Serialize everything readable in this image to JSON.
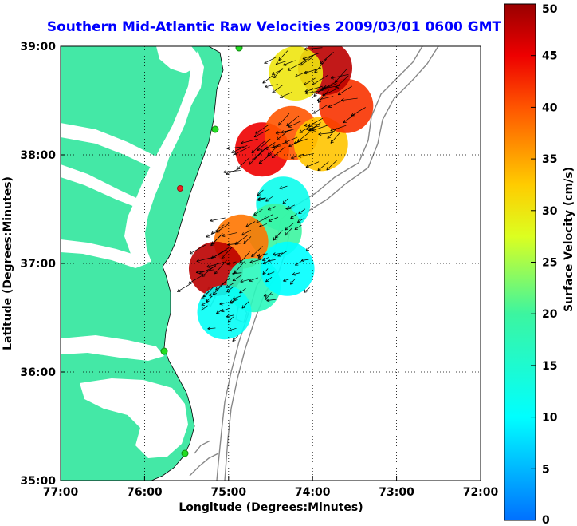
{
  "chart_data": {
    "type": "heatmap",
    "title": "Southern Mid-Atlantic Raw Velocities 2009/03/01 0600 GMT",
    "xlabel": "Longitude (Degrees:Minutes)",
    "ylabel": "Latitude (Degrees:Minutes)",
    "xlim": [
      -77,
      -72
    ],
    "ylim": [
      35,
      39
    ],
    "x_ticks": [
      {
        "value": -77,
        "label": "77:00"
      },
      {
        "value": -76,
        "label": "76:00"
      },
      {
        "value": -75,
        "label": "75:00"
      },
      {
        "value": -74,
        "label": "74:00"
      },
      {
        "value": -73,
        "label": "73:00"
      },
      {
        "value": -72,
        "label": "72:00"
      }
    ],
    "y_ticks": [
      {
        "value": 35,
        "label": "35:00"
      },
      {
        "value": 36,
        "label": "36:00"
      },
      {
        "value": 37,
        "label": "37:00"
      },
      {
        "value": 38,
        "label": "38:00"
      },
      {
        "value": 39,
        "label": "39:00"
      }
    ],
    "grid": true,
    "colorbar": {
      "label": "Surface Velocity (cm/s)",
      "min": 0,
      "max": 50,
      "ticks": [
        "0",
        "5",
        "10",
        "15",
        "20",
        "25",
        "30",
        "35",
        "40",
        "45",
        "50"
      ]
    },
    "velocity_patches": [
      {
        "lon": -74.6,
        "lat": 38.05,
        "speed": 45
      },
      {
        "lon": -74.25,
        "lat": 38.2,
        "speed": 40
      },
      {
        "lon": -73.9,
        "lat": 38.1,
        "speed": 33
      },
      {
        "lon": -73.6,
        "lat": 38.45,
        "speed": 42
      },
      {
        "lon": -73.85,
        "lat": 38.8,
        "speed": 48
      },
      {
        "lon": -74.2,
        "lat": 38.75,
        "speed": 30
      },
      {
        "lon": -74.35,
        "lat": 37.55,
        "speed": 12
      },
      {
        "lon": -74.45,
        "lat": 37.3,
        "speed": 20
      },
      {
        "lon": -74.85,
        "lat": 37.2,
        "speed": 38
      },
      {
        "lon": -75.15,
        "lat": 36.95,
        "speed": 48
      },
      {
        "lon": -74.7,
        "lat": 36.8,
        "speed": 17
      },
      {
        "lon": -74.3,
        "lat": 36.95,
        "speed": 10
      },
      {
        "lon": -75.05,
        "lat": 36.55,
        "speed": 11
      }
    ],
    "colors": {
      "land": "#44e8a6",
      "ocean": "#ffffff",
      "bathymetry": "#888888",
      "title": "#0000ff"
    }
  }
}
